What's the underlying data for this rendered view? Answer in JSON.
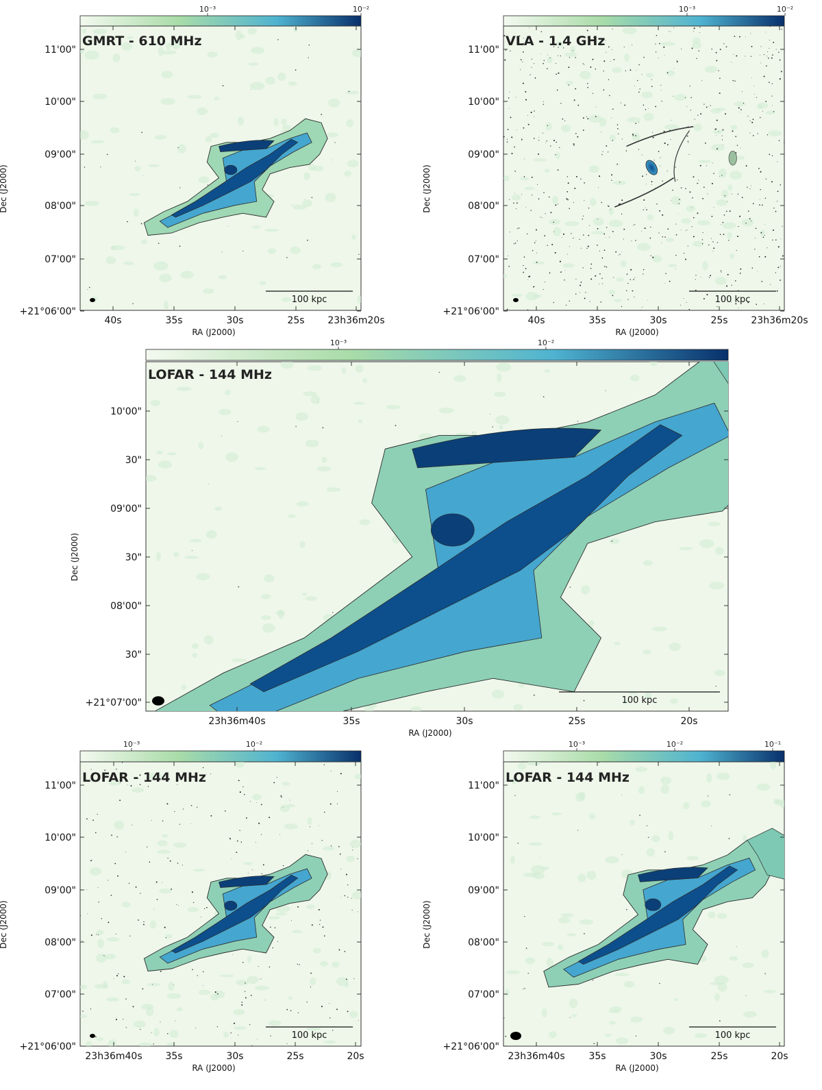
{
  "colors": {
    "cmap_low": "#f3f9ef",
    "cmap_mid1": "#a9dca8",
    "cmap_mid2": "#4fb3d0",
    "cmap_high": "#08306b",
    "contour": "#2a2a2a"
  },
  "panels": [
    {
      "id": "gmrt",
      "title": "GMRT - 610 MHz",
      "colorbar_ticks": [
        "10⁻³",
        "10⁻²"
      ],
      "y_ticks": [
        "11'00\"",
        "10'00\"",
        "09'00\"",
        "08'00\"",
        "07'00\"",
        "+21°06'00\""
      ],
      "x_ticks": [
        "40s",
        "35s",
        "30s",
        "25s",
        "23h36m20s"
      ],
      "xlabel": "RA (J2000)",
      "ylabel": "Dec (J2000)",
      "scalebar": "100 kpc"
    },
    {
      "id": "vla",
      "title": "VLA - 1.4 GHz",
      "colorbar_ticks": [
        "10⁻³",
        "10⁻²"
      ],
      "y_ticks": [
        "11'00\"",
        "10'00\"",
        "09'00\"",
        "08'00\"",
        "07'00\"",
        "+21°06'00\""
      ],
      "x_ticks": [
        "40s",
        "35s",
        "30s",
        "25s",
        "23h36m20s"
      ],
      "xlabel": "RA (J2000)",
      "ylabel": "Dec (J2000)",
      "scalebar": "100 kpc"
    },
    {
      "id": "lofar-main",
      "title": "LOFAR - 144 MHz",
      "colorbar_ticks": [
        "10⁻³",
        "10⁻²"
      ],
      "y_ticks": [
        "10'00\"",
        "30\"",
        "09'00\"",
        "30\"",
        "08'00\"",
        "30\"",
        "+21°07'00\""
      ],
      "x_ticks": [
        "23h36m40s",
        "35s",
        "30s",
        "25s",
        "20s"
      ],
      "xlabel": "RA (J2000)",
      "ylabel": "Dec (J2000)",
      "scalebar": "100 kpc"
    },
    {
      "id": "lofar-hires",
      "title": "LOFAR - 144 MHz",
      "colorbar_ticks": [
        "10⁻³",
        "10⁻²"
      ],
      "y_ticks": [
        "11'00\"",
        "10'00\"",
        "09'00\"",
        "08'00\"",
        "07'00\"",
        "+21°06'00\""
      ],
      "x_ticks": [
        "23h36m40s",
        "35s",
        "30s",
        "25s",
        "20s"
      ],
      "xlabel": "RA (J2000)",
      "ylabel": "Dec (J2000)",
      "scalebar": "100 kpc"
    },
    {
      "id": "lofar-lowres",
      "title": "LOFAR - 144 MHz",
      "colorbar_ticks": [
        "10⁻³",
        "10⁻²",
        "10⁻¹"
      ],
      "y_ticks": [
        "11'00\"",
        "10'00\"",
        "09'00\"",
        "08'00\"",
        "07'00\"",
        "+21°06'00\""
      ],
      "x_ticks": [
        "23h36m40s",
        "35s",
        "30s",
        "25s",
        "20s"
      ],
      "xlabel": "RA (J2000)",
      "ylabel": "Dec (J2000)",
      "scalebar": "100 kpc"
    }
  ]
}
